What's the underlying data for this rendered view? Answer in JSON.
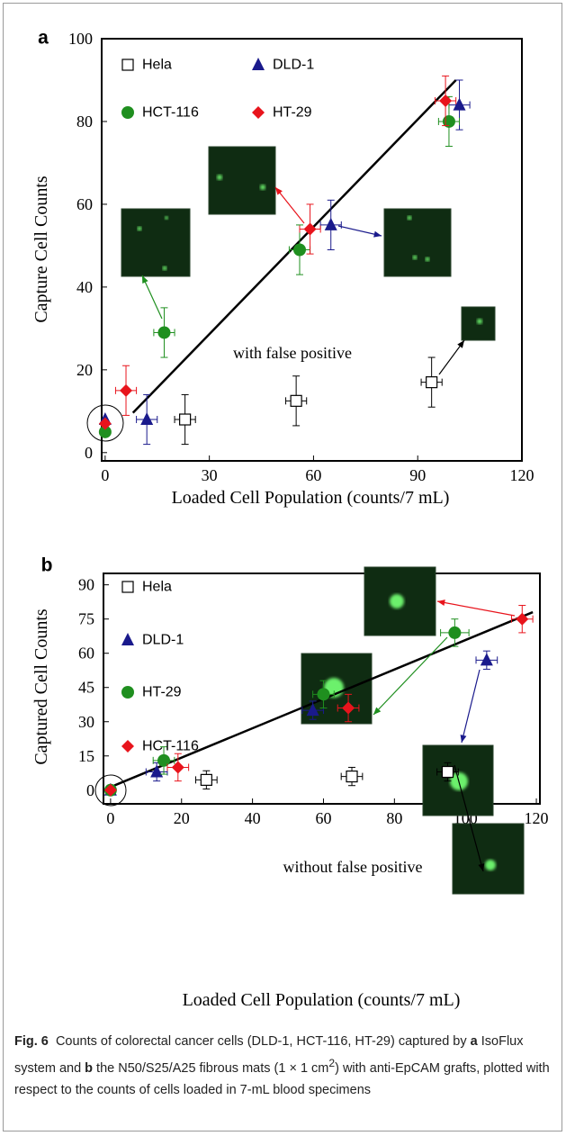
{
  "chart_data": [
    {
      "type": "scatter",
      "panel_label": "a",
      "xlabel": "Loaded Cell Population (counts/7 mL)",
      "ylabel": "Capture Cell Counts",
      "xlim": [
        -1,
        120
      ],
      "ylim": [
        -2,
        100
      ],
      "xticks": [
        0,
        30,
        60,
        90,
        120
      ],
      "yticks": [
        0,
        20,
        40,
        60,
        80,
        100
      ],
      "annotation": "with false positive",
      "series": [
        {
          "name": "Hela",
          "marker": "square",
          "color": "#000000",
          "x": [
            23,
            55,
            94
          ],
          "values": [
            8,
            12.5,
            17
          ],
          "xerr": [
            3,
            3,
            3
          ],
          "yerr": [
            6,
            6,
            6
          ]
        },
        {
          "name": "DLD-1",
          "marker": "triangle",
          "color": "#1a1a8c",
          "x": [
            0,
            12,
            65,
            102
          ],
          "values": [
            8,
            8,
            55,
            84
          ],
          "xerr": [
            null,
            3,
            3,
            3
          ],
          "yerr": [
            null,
            6,
            6,
            6
          ]
        },
        {
          "name": "HCT-116",
          "marker": "circle",
          "color": "#1f8f1f",
          "x": [
            0,
            17,
            56,
            99
          ],
          "values": [
            5,
            29,
            49,
            80
          ],
          "xerr": [
            null,
            3,
            3,
            3
          ],
          "yerr": [
            null,
            6,
            6,
            6
          ]
        },
        {
          "name": "HT-29",
          "marker": "diamond",
          "color": "#e8141c",
          "x": [
            0,
            6,
            59,
            98
          ],
          "values": [
            7,
            15,
            54,
            85
          ],
          "xerr": [
            null,
            3,
            3,
            3
          ],
          "yerr": [
            null,
            6,
            6,
            6
          ]
        }
      ],
      "fit": {
        "color": "#000000",
        "x": [
          8,
          101
        ],
        "values": [
          9.6,
          90
        ]
      }
    },
    {
      "type": "scatter",
      "panel_label": "b",
      "xlabel": "Loaded Cell Population (counts/7 mL)",
      "ylabel": "Captured Cell Counts",
      "xlim": [
        -2,
        121
      ],
      "ylim": [
        -6,
        95
      ],
      "xticks": [
        0,
        20,
        40,
        60,
        80,
        100,
        120
      ],
      "yticks": [
        0,
        15,
        30,
        45,
        60,
        75,
        90
      ],
      "annotation": "without false positive",
      "series": [
        {
          "name": "Hela",
          "marker": "square",
          "color": "#000000",
          "x": [
            27,
            68,
            95
          ],
          "values": [
            4.5,
            6,
            8
          ],
          "xerr": [
            3,
            3,
            3
          ],
          "yerr": [
            4,
            4,
            4
          ]
        },
        {
          "name": "DLD-1",
          "marker": "triangle",
          "color": "#1a1a8c",
          "x": [
            0,
            13,
            57,
            106
          ],
          "values": [
            0,
            8,
            35,
            57
          ],
          "xerr": [
            null,
            3,
            3,
            3
          ],
          "yerr": [
            null,
            4,
            4,
            4
          ]
        },
        {
          "name": "HT-29",
          "marker": "circle",
          "color": "#1f8f1f",
          "x": [
            0,
            15,
            60,
            97
          ],
          "values": [
            0,
            13,
            42,
            69
          ],
          "xerr": [
            null,
            3,
            3,
            4
          ],
          "yerr": [
            null,
            6,
            6,
            6
          ]
        },
        {
          "name": "HCT-116",
          "marker": "diamond",
          "color": "#e8141c",
          "x": [
            0,
            19,
            67,
            116
          ],
          "values": [
            0,
            10,
            36,
            75
          ],
          "xerr": [
            null,
            3,
            3,
            3
          ],
          "yerr": [
            null,
            6,
            6,
            6
          ]
        }
      ],
      "fit": {
        "color": "#000000",
        "x": [
          1,
          119
        ],
        "values": [
          2,
          78
        ]
      }
    }
  ],
  "caption": {
    "label": "Fig. 6",
    "parts": [
      "Counts of colorectal cancer cells (DLD-1, HCT-116, HT-29) captured by ",
      "a",
      " IsoFlux system and ",
      "b",
      " the N50/S25/A25 fibrous mats (1 × 1 cm",
      "2",
      ") with anti-EpCAM grafts, plotted with respect to the counts of cells loaded in 7-mL blood specimens"
    ]
  }
}
